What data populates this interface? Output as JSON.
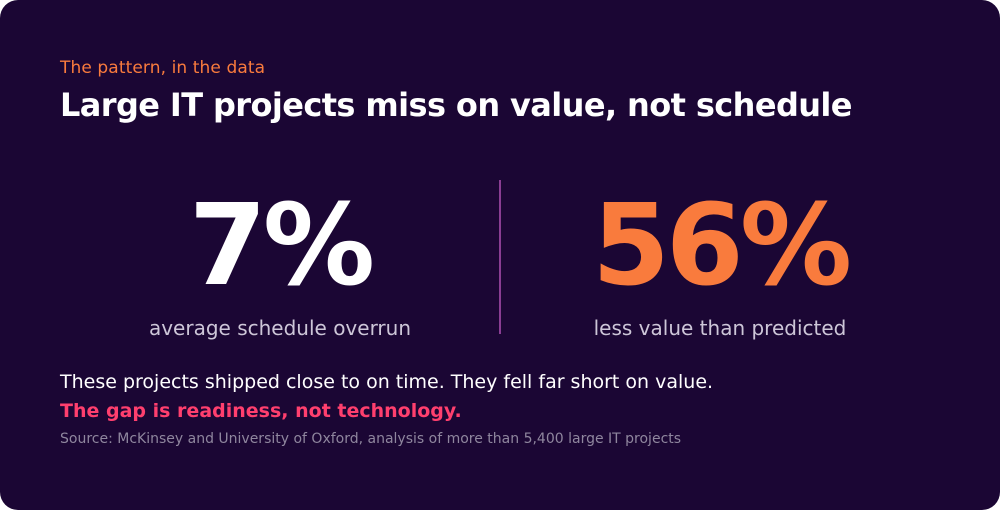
{
  "header": {
    "eyebrow": "The pattern, in the data",
    "title": "Large IT projects miss on value, not schedule"
  },
  "stats": [
    {
      "value": "7%",
      "label": "average schedule overrun",
      "color": "#ffffff"
    },
    {
      "value": "56%",
      "label": "less value than predicted",
      "color": "#f97b3d"
    }
  ],
  "body": {
    "text": "These projects shipped close to on time. They fell far short on value.",
    "highlight": "The gap is readiness, not technology.",
    "source": "Source: McKinsey and University of Oxford, analysis of more than 5,400 large IT projects"
  },
  "colors": {
    "background": "#1b0634",
    "accent_orange": "#f97b3d",
    "accent_pink": "#ff3f6e",
    "divider": "#8a3d93"
  }
}
